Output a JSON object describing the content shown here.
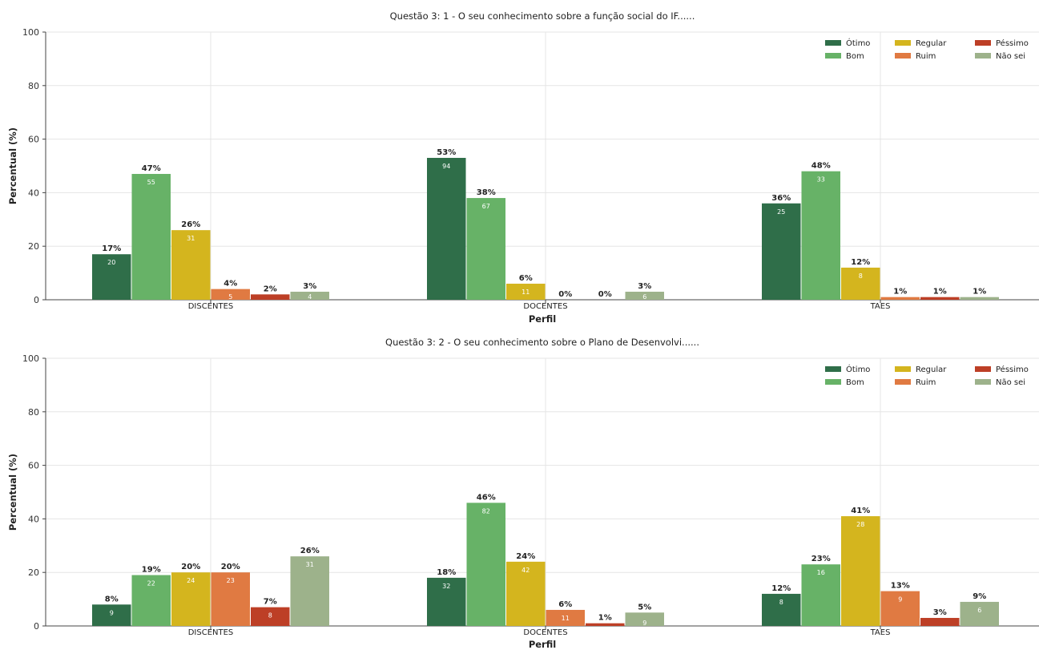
{
  "colors": {
    "Ótimo": "#2f6e49",
    "Bom": "#67b267",
    "Regular": "#d4b51e",
    "Ruim": "#e07a42",
    "Péssimo": "#bd3f26",
    "Não sei": "#9db28b",
    "grid": "#e5e5e5",
    "axis": "#444444"
  },
  "chart_data": [
    {
      "type": "bar",
      "title": "Questão 3: 1 - O seu conhecimento sobre a função social do IF......",
      "xlabel": "Perfil",
      "ylabel": "Percentual (%)",
      "ylim": [
        0,
        100
      ],
      "yticks": [
        0,
        20,
        40,
        60,
        80,
        100
      ],
      "grid": true,
      "legend_position": "top-right",
      "categories": [
        "DISCENTES",
        "DOCENTES",
        "TAES"
      ],
      "series": [
        {
          "name": "Ótimo",
          "values": [
            17,
            53,
            36
          ],
          "labels": [
            "17%",
            "53%",
            "36%"
          ],
          "counts": [
            "20",
            "94",
            "25"
          ]
        },
        {
          "name": "Bom",
          "values": [
            47,
            38,
            48
          ],
          "labels": [
            "47%",
            "38%",
            "48%"
          ],
          "counts": [
            "55",
            "67",
            "33"
          ]
        },
        {
          "name": "Regular",
          "values": [
            26,
            6,
            12
          ],
          "labels": [
            "26%",
            "6%",
            "12%"
          ],
          "counts": [
            "31",
            "11",
            "8"
          ]
        },
        {
          "name": "Ruim",
          "values": [
            4,
            0,
            1
          ],
          "labels": [
            "4%",
            "0%",
            "1%"
          ],
          "counts": [
            "5",
            "",
            ""
          ]
        },
        {
          "name": "Péssimo",
          "values": [
            2,
            0,
            1
          ],
          "labels": [
            "2%",
            "0%",
            "1%"
          ],
          "counts": [
            "",
            "",
            ""
          ]
        },
        {
          "name": "Não sei",
          "values": [
            3,
            3,
            1
          ],
          "labels": [
            "3%",
            "3%",
            "1%"
          ],
          "counts": [
            "4",
            "6",
            ""
          ]
        }
      ]
    },
    {
      "type": "bar",
      "title": "Questão 3: 2 - O seu conhecimento sobre o Plano de Desenvolvi......",
      "xlabel": "Perfil",
      "ylabel": "Percentual (%)",
      "ylim": [
        0,
        100
      ],
      "yticks": [
        0,
        20,
        40,
        60,
        80,
        100
      ],
      "grid": true,
      "legend_position": "top-right",
      "categories": [
        "DISCENTES",
        "DOCENTES",
        "TAES"
      ],
      "series": [
        {
          "name": "Ótimo",
          "values": [
            8,
            18,
            12
          ],
          "labels": [
            "8%",
            "18%",
            "12%"
          ],
          "counts": [
            "9",
            "32",
            "8"
          ]
        },
        {
          "name": "Bom",
          "values": [
            19,
            46,
            23
          ],
          "labels": [
            "19%",
            "46%",
            "23%"
          ],
          "counts": [
            "22",
            "82",
            "16"
          ]
        },
        {
          "name": "Regular",
          "values": [
            20,
            24,
            41
          ],
          "labels": [
            "20%",
            "24%",
            "41%"
          ],
          "counts": [
            "24",
            "42",
            "28"
          ]
        },
        {
          "name": "Ruim",
          "values": [
            20,
            6,
            13
          ],
          "labels": [
            "20%",
            "6%",
            "13%"
          ],
          "counts": [
            "23",
            "11",
            "9"
          ]
        },
        {
          "name": "Péssimo",
          "values": [
            7,
            1,
            3
          ],
          "labels": [
            "7%",
            "1%",
            "3%"
          ],
          "counts": [
            "8",
            "",
            ""
          ]
        },
        {
          "name": "Não sei",
          "values": [
            26,
            5,
            9
          ],
          "labels": [
            "26%",
            "5%",
            "9%"
          ],
          "counts": [
            "31",
            "9",
            "6"
          ]
        }
      ]
    }
  ]
}
